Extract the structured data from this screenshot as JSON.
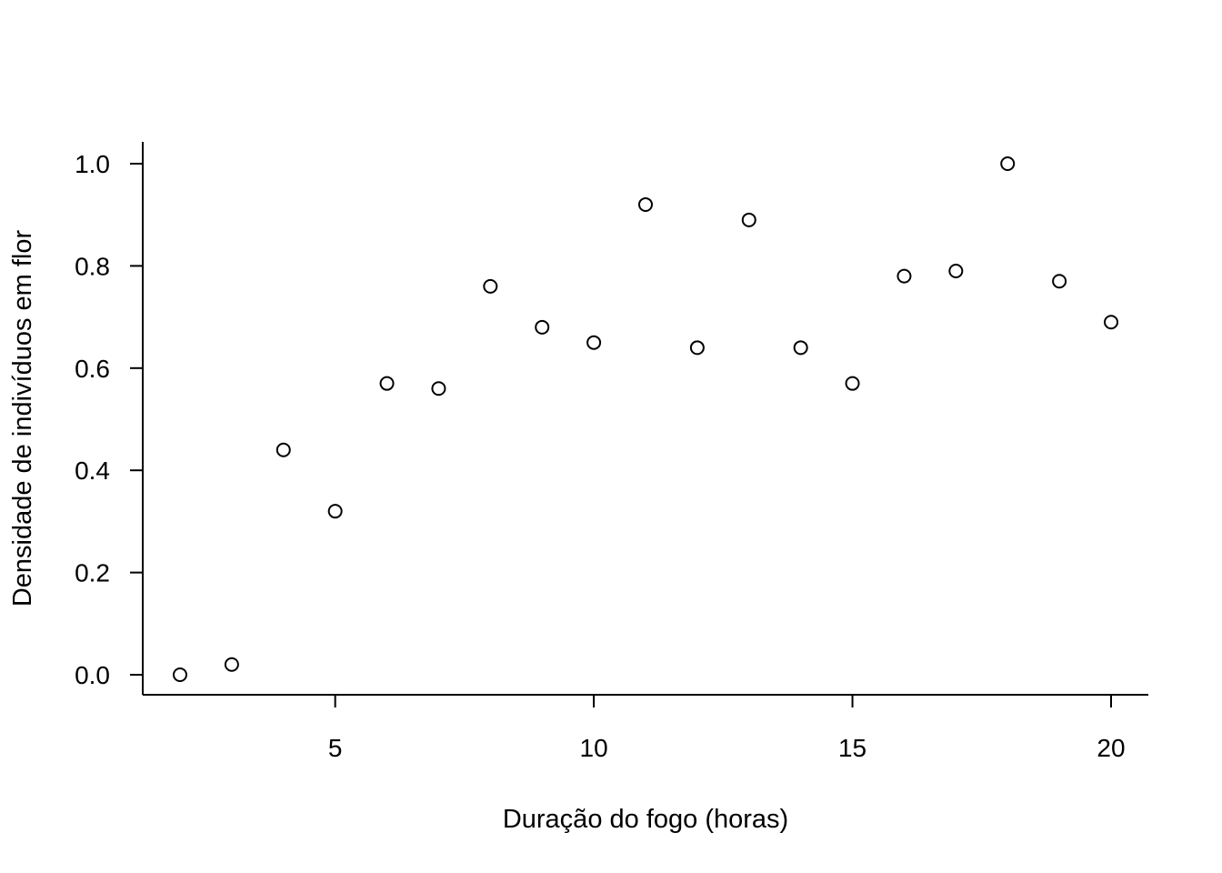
{
  "chart_data": {
    "type": "scatter",
    "title": "",
    "xlabel": "Duração do fogo (horas)",
    "ylabel": "Densidade de indivíduos em flor",
    "xlim": [
      1.28,
      20.72
    ],
    "ylim": [
      -0.04,
      1.04
    ],
    "x_ticks": [
      5,
      10,
      15,
      20
    ],
    "y_ticks": [
      0.0,
      0.2,
      0.4,
      0.6,
      0.8,
      1.0
    ],
    "x_tick_labels": [
      "5",
      "10",
      "15",
      "20"
    ],
    "y_tick_labels": [
      "0.0",
      "0.2",
      "0.4",
      "0.6",
      "0.8",
      "1.0"
    ],
    "grid": false,
    "marker": "open-circle",
    "colors": {
      "marker": "#000000",
      "axis": "#000000",
      "background": "#ffffff"
    },
    "x": [
      2,
      3,
      4,
      5,
      6,
      7,
      8,
      9,
      10,
      11,
      12,
      13,
      14,
      15,
      16,
      17,
      18,
      19,
      20
    ],
    "y": [
      0.0,
      0.02,
      0.44,
      0.32,
      0.57,
      0.56,
      0.76,
      0.68,
      0.65,
      0.92,
      0.64,
      0.89,
      0.64,
      0.57,
      0.78,
      0.79,
      1.0,
      0.77,
      0.69
    ]
  }
}
